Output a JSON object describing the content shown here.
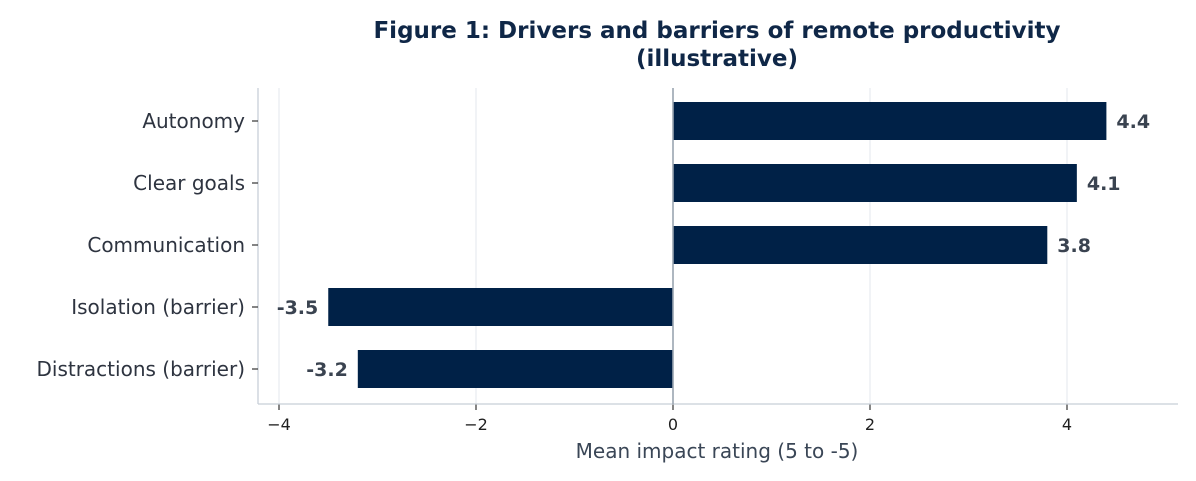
{
  "chart_data": {
    "type": "bar",
    "orientation": "horizontal",
    "title": "Figure 1: Drivers and barriers of remote productivity",
    "subtitle": "(illustrative)",
    "xlabel": "Mean impact rating (5 to -5)",
    "ylabel": "",
    "categories": [
      "Autonomy",
      "Clear goals",
      "Communication",
      "Isolation (barrier)",
      "Distractions (barrier)"
    ],
    "values": [
      4.4,
      4.1,
      3.8,
      -3.5,
      -3.2
    ],
    "value_labels": [
      "4.4",
      "4.1",
      "3.8",
      "-3.5",
      "-3.2"
    ],
    "xlim": [
      -4.2,
      5.1
    ],
    "xticks": [
      -4,
      -2,
      0,
      2,
      4
    ],
    "xtick_labels": [
      "−4",
      "−2",
      "0",
      "2",
      "4"
    ],
    "grid": "vertical",
    "bar_color": "#002147",
    "zero_line_color": "#9aa5b1"
  }
}
